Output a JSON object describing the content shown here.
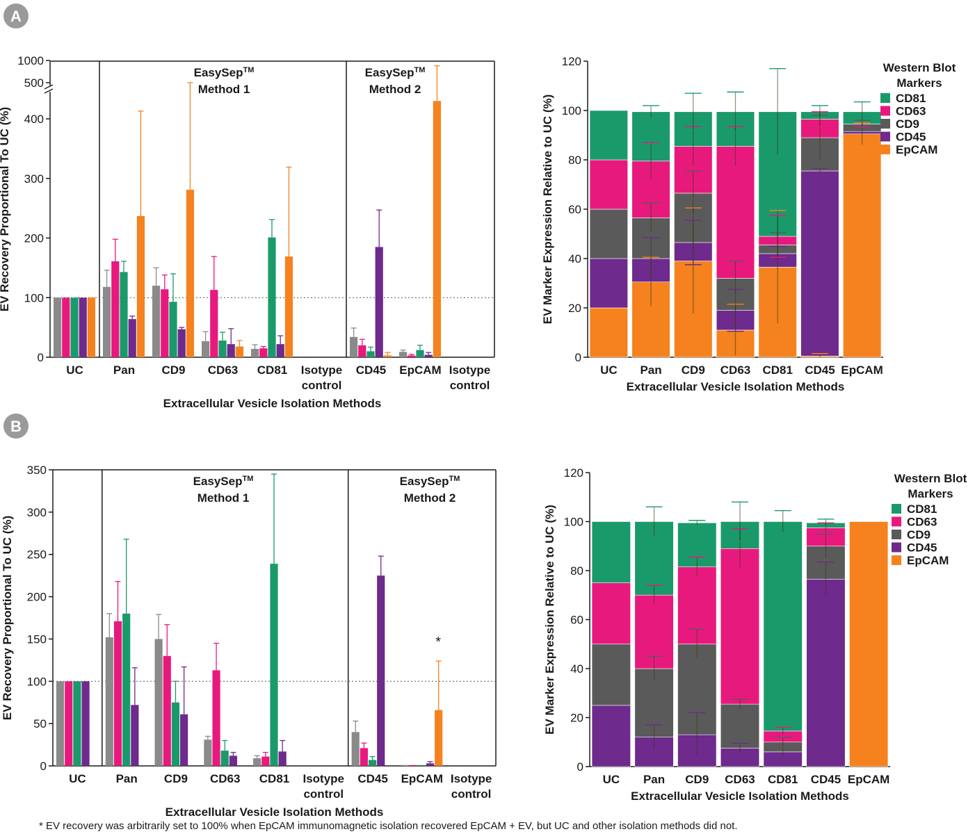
{
  "panels": [
    {
      "label": "A"
    },
    {
      "label": "B"
    }
  ],
  "colors": {
    "gray": "#8a8a8a",
    "pink": "#e8197d",
    "green": "#1a9a6a",
    "purple": "#6e2a8c",
    "orange": "#f5821f",
    "darkgray": "#5a5a5a"
  },
  "chart_data": [
    {
      "id": "A-left",
      "type": "bar",
      "panel": "A",
      "ylabel": "EV Recovery Proportional To UC (%)",
      "xlabel": "Extracellular Vesicle Isolation Methods",
      "ylim": [
        0,
        1000
      ],
      "y_break": true,
      "yticks": [
        "0",
        "100",
        "200",
        "300",
        "400",
        "500",
        "1000"
      ],
      "categories": [
        "UC",
        "Pan",
        "CD9",
        "CD63",
        "CD81",
        "Isotype control",
        "CD45",
        "EpCAM",
        "Isotype control"
      ],
      "method_labels": [
        {
          "line1": "EasySep™",
          "line2": "Method 1"
        },
        {
          "line1": "EasySep™",
          "line2": "Method 2"
        }
      ],
      "reference_line": 100,
      "series": [
        {
          "name": "gray",
          "color": "#8a8a8a",
          "values": [
            100,
            118,
            120,
            27,
            14,
            0,
            34,
            9,
            0
          ],
          "errors": [
            0,
            28,
            30,
            16,
            7,
            0,
            15,
            3,
            0
          ]
        },
        {
          "name": "pink",
          "color": "#e8197d",
          "values": [
            100,
            161,
            114,
            113,
            15,
            0,
            20,
            3,
            0
          ],
          "errors": [
            0,
            37,
            24,
            56,
            3,
            0,
            10,
            2,
            0
          ]
        },
        {
          "name": "green",
          "color": "#1a9a6a",
          "values": [
            100,
            143,
            93,
            28,
            201,
            0,
            10,
            12,
            0
          ],
          "errors": [
            0,
            18,
            47,
            14,
            30,
            0,
            7,
            8,
            0
          ]
        },
        {
          "name": "purple",
          "color": "#6e2a8c",
          "values": [
            100,
            64,
            47,
            22,
            22,
            0,
            185,
            4,
            0
          ],
          "errors": [
            0,
            5,
            3,
            26,
            14,
            0,
            62,
            4,
            0
          ]
        },
        {
          "name": "orange",
          "color": "#f5821f",
          "values": [
            100,
            237,
            281,
            18,
            169,
            0,
            3,
            430,
            0
          ],
          "errors": [
            0,
            176,
            220,
            10,
            150,
            0,
            5,
            450,
            0
          ]
        }
      ]
    },
    {
      "id": "A-right",
      "type": "bar",
      "stacked": true,
      "panel": "A",
      "ylabel": "EV Marker Expression Relative to UC (%)",
      "xlabel": "Extracellular Vesicle Isolation Methods",
      "ylim": [
        0,
        120
      ],
      "yticks": [
        "0",
        "20",
        "40",
        "60",
        "80",
        "100",
        "120"
      ],
      "categories": [
        "UC",
        "Pan",
        "CD9",
        "CD63",
        "CD81",
        "CD45",
        "EpCAM"
      ],
      "legend_title": [
        "Western Blot",
        "Markers"
      ],
      "legend": [
        "CD81",
        "CD63",
        "CD9",
        "CD45",
        "EpCAM"
      ],
      "series": [
        {
          "name": "EpCAM",
          "color": "#f5821f",
          "values": [
            20,
            30.5,
            39,
            11,
            36.5,
            0.5,
            90.5
          ],
          "errors": [
            0,
            10,
            21.5,
            10.5,
            23,
            1,
            4.5
          ]
        },
        {
          "name": "CD45",
          "color": "#6e2a8c",
          "values": [
            20,
            9.5,
            7.5,
            8,
            5.5,
            75,
            1
          ],
          "errors": [
            0,
            8.5,
            9,
            8.5,
            3,
            1,
            0
          ]
        },
        {
          "name": "CD9",
          "color": "#5a5a5a",
          "values": [
            20,
            16.5,
            20,
            13,
            3.5,
            13.5,
            3
          ],
          "errors": [
            0,
            6,
            9,
            7,
            5,
            9,
            1.5
          ]
        },
        {
          "name": "CD63",
          "color": "#e8197d",
          "values": [
            20,
            23,
            19,
            53.5,
            3.5,
            7.5,
            0
          ],
          "errors": [
            0,
            7.5,
            8,
            8,
            8.5,
            3,
            1
          ]
        },
        {
          "name": "CD81",
          "color": "#1a9a6a",
          "values": [
            20,
            20,
            14,
            14,
            50.5,
            3,
            5
          ],
          "errors": [
            0,
            2.5,
            7.5,
            8,
            17.5,
            2.5,
            4
          ]
        }
      ]
    },
    {
      "id": "B-left",
      "type": "bar",
      "panel": "B",
      "ylabel": "EV Recovery Proportional To UC (%)",
      "xlabel": "Extracellular Vesicle Isolation Methods",
      "ylim": [
        0,
        350
      ],
      "yticks": [
        "0",
        "50",
        "100",
        "150",
        "200",
        "250",
        "300",
        "350"
      ],
      "categories": [
        "UC",
        "Pan",
        "CD9",
        "CD63",
        "CD81",
        "Isotype control",
        "CD45",
        "EpCAM",
        "Isotype control"
      ],
      "method_labels": [
        {
          "line1": "EasySep™",
          "line2": "Method 1"
        },
        {
          "line1": "EasySep™",
          "line2": "Method 2"
        }
      ],
      "reference_line": 100,
      "annotation": "*",
      "series": [
        {
          "name": "gray",
          "color": "#8a8a8a",
          "values": [
            100,
            152,
            150,
            31,
            9,
            0,
            40,
            1,
            0
          ],
          "errors": [
            0,
            28,
            29,
            4,
            3,
            0,
            13,
            0,
            0
          ]
        },
        {
          "name": "pink",
          "color": "#e8197d",
          "values": [
            100,
            171,
            130,
            113,
            11,
            0,
            21,
            1,
            0
          ],
          "errors": [
            0,
            47,
            37,
            32,
            5,
            0,
            6,
            0,
            0
          ]
        },
        {
          "name": "green",
          "color": "#1a9a6a",
          "values": [
            100,
            180,
            75,
            18,
            239,
            0,
            7,
            1,
            0
          ],
          "errors": [
            0,
            88,
            25,
            12,
            106,
            0,
            4,
            0,
            0
          ]
        },
        {
          "name": "purple",
          "color": "#6e2a8c",
          "values": [
            100,
            72,
            61,
            12,
            17,
            0,
            225,
            3,
            0
          ],
          "errors": [
            0,
            44,
            56,
            4,
            13,
            0,
            23,
            2,
            0
          ]
        },
        {
          "name": "orange",
          "color": "#f5821f",
          "values": [
            0,
            0,
            0,
            0,
            0,
            0,
            0,
            66,
            0
          ],
          "errors": [
            0,
            0,
            0,
            0,
            0,
            0,
            0,
            58,
            0
          ]
        }
      ]
    },
    {
      "id": "B-right",
      "type": "bar",
      "stacked": true,
      "panel": "B",
      "ylabel": "EV Marker Expression Relative to UC (%)",
      "xlabel": "Extracellular Vesicle Isolation Methods",
      "ylim": [
        0,
        120
      ],
      "yticks": [
        "0",
        "20",
        "40",
        "60",
        "80",
        "100",
        "120"
      ],
      "categories": [
        "UC",
        "Pan",
        "CD9",
        "CD63",
        "CD81",
        "CD45",
        "EpCAM"
      ],
      "legend_title": [
        "Western Blot",
        "Markers"
      ],
      "legend": [
        "CD81",
        "CD63",
        "CD9",
        "CD45",
        "EpCAM"
      ],
      "series": [
        {
          "name": "EpCAM",
          "color": "#f5821f",
          "values": [
            0,
            0,
            0,
            0,
            0,
            0,
            100
          ],
          "errors": [
            0,
            0,
            0,
            0,
            0,
            0,
            0
          ]
        },
        {
          "name": "CD45",
          "color": "#6e2a8c",
          "values": [
            25,
            12,
            13,
            7.5,
            6,
            76.5,
            0
          ],
          "errors": [
            0,
            5,
            9,
            2,
            2,
            7,
            0
          ]
        },
        {
          "name": "CD9",
          "color": "#5a5a5a",
          "values": [
            25,
            28,
            37,
            18,
            4,
            13.5,
            0
          ],
          "errors": [
            0,
            5,
            6,
            2,
            2,
            5,
            0
          ]
        },
        {
          "name": "CD63",
          "color": "#e8197d",
          "values": [
            25,
            30,
            31.5,
            63.5,
            4.5,
            7.5,
            0
          ],
          "errors": [
            0,
            4,
            4,
            8,
            1.5,
            2,
            0
          ]
        },
        {
          "name": "CD81",
          "color": "#1a9a6a",
          "values": [
            25,
            30,
            18,
            11,
            85.5,
            2,
            0
          ],
          "errors": [
            0,
            6,
            1,
            8,
            4.5,
            1.5,
            0
          ]
        }
      ]
    }
  ],
  "footnote": "* EV recovery was arbitrarily set to 100% when EpCAM immunomagnetic isolation recovered EpCAM + EV, but UC and other isolation methods did not."
}
